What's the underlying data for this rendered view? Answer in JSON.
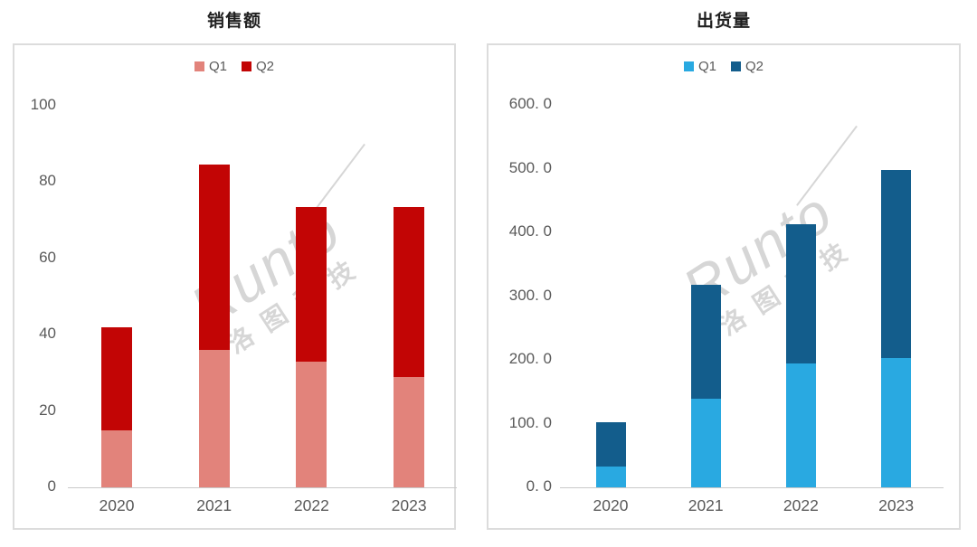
{
  "watermark": {
    "brand": "Runto",
    "cjk": "洛图科技"
  },
  "chart_data": [
    {
      "type": "bar",
      "stacked": true,
      "title": "销售额",
      "categories": [
        "2020",
        "2021",
        "2022",
        "2023"
      ],
      "series": [
        {
          "name": "Q1",
          "color": "#E2837B",
          "values": [
            15,
            36,
            33,
            29
          ]
        },
        {
          "name": "Q2",
          "color": "#C20505",
          "values": [
            27,
            48.5,
            40.5,
            44.5
          ]
        }
      ],
      "ylim": [
        0,
        100
      ],
      "y_ticks": [
        {
          "label": "0",
          "value": 0
        },
        {
          "label": "20",
          "value": 20
        },
        {
          "label": "40",
          "value": 40
        },
        {
          "label": "60",
          "value": 60
        },
        {
          "label": "80",
          "value": 80
        },
        {
          "label": "100",
          "value": 100
        }
      ],
      "legend_position": "top-center",
      "grid": false
    },
    {
      "type": "bar",
      "stacked": true,
      "title": "出货量",
      "categories": [
        "2020",
        "2021",
        "2022",
        "2023"
      ],
      "series": [
        {
          "name": "Q1",
          "color": "#29A9E1",
          "values": [
            33,
            139,
            194,
            203
          ]
        },
        {
          "name": "Q2",
          "color": "#135D8C",
          "values": [
            69,
            179,
            219,
            295
          ]
        }
      ],
      "ylim": [
        0,
        600
      ],
      "y_ticks": [
        {
          "label": "0. 0",
          "value": 0
        },
        {
          "label": "100. 0",
          "value": 100
        },
        {
          "label": "200. 0",
          "value": 200
        },
        {
          "label": "300. 0",
          "value": 300
        },
        {
          "label": "400. 0",
          "value": 400
        },
        {
          "label": "500. 0",
          "value": 500
        },
        {
          "label": "600. 0",
          "value": 600
        }
      ],
      "legend_position": "top-center",
      "grid": false
    }
  ]
}
